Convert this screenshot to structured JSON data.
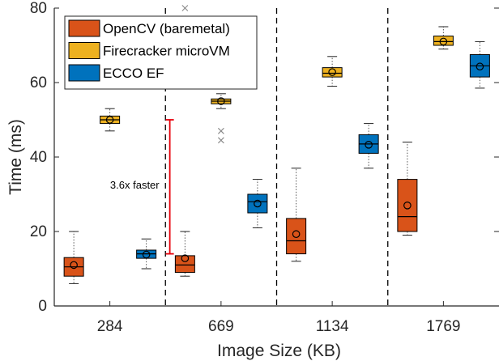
{
  "chart_data": {
    "type": "box",
    "xlabel": "Image Size (KB)",
    "ylabel": "Time (ms)",
    "ylim": [
      0,
      80
    ],
    "yticks": [
      0,
      20,
      40,
      60,
      80
    ],
    "categories": [
      "284",
      "669",
      "1134",
      "1769"
    ],
    "legend_position": "top-left",
    "grid": false,
    "series": [
      {
        "name": "OpenCV (baremetal)",
        "color": "#d95319",
        "boxes": [
          {
            "min": 6,
            "q1": 8,
            "median": 10.5,
            "q3": 13,
            "max": 20,
            "mean": 11,
            "outliers": []
          },
          {
            "min": 8,
            "q1": 9,
            "median": 11,
            "q3": 13.5,
            "max": 20,
            "mean": 12.8,
            "outliers": [
              80
            ]
          },
          {
            "min": 12,
            "q1": 14,
            "median": 17.5,
            "q3": 23.5,
            "max": 37,
            "mean": 19.3,
            "outliers": []
          },
          {
            "min": 19,
            "q1": 20,
            "median": 24,
            "q3": 34,
            "max": 44,
            "mean": 27,
            "outliers": []
          }
        ]
      },
      {
        "name": "Firecracker microVM",
        "color": "#edb120",
        "boxes": [
          {
            "min": 47,
            "q1": 49,
            "median": 50,
            "q3": 51,
            "max": 53,
            "mean": 50,
            "outliers": []
          },
          {
            "min": 53,
            "q1": 54.3,
            "median": 55,
            "q3": 55.6,
            "max": 57,
            "mean": 55,
            "outliers": [
              47,
              44.5
            ]
          },
          {
            "min": 59,
            "q1": 61.5,
            "median": 62.5,
            "q3": 64,
            "max": 67,
            "mean": 62.8,
            "outliers": []
          },
          {
            "min": 69,
            "q1": 70,
            "median": 71,
            "q3": 72.5,
            "max": 75,
            "mean": 71,
            "outliers": []
          }
        ]
      },
      {
        "name": "ECCO EF",
        "color": "#0072bd",
        "boxes": [
          {
            "min": 10,
            "q1": 12.8,
            "median": 14,
            "q3": 15,
            "max": 18,
            "mean": 13.8,
            "outliers": []
          },
          {
            "min": 21,
            "q1": 25,
            "median": 28,
            "q3": 30,
            "max": 34,
            "mean": 27.5,
            "outliers": []
          },
          {
            "min": 37,
            "q1": 41,
            "median": 43.5,
            "q3": 46,
            "max": 49,
            "mean": 43.3,
            "outliers": []
          },
          {
            "min": 58.5,
            "q1": 61.5,
            "median": 64.5,
            "q3": 67.5,
            "max": 71,
            "mean": 64.3,
            "outliers": []
          }
        ]
      }
    ],
    "annotation": {
      "text": "3.6x faster",
      "from": 14,
      "to": 50,
      "color": "#e8000b"
    }
  }
}
